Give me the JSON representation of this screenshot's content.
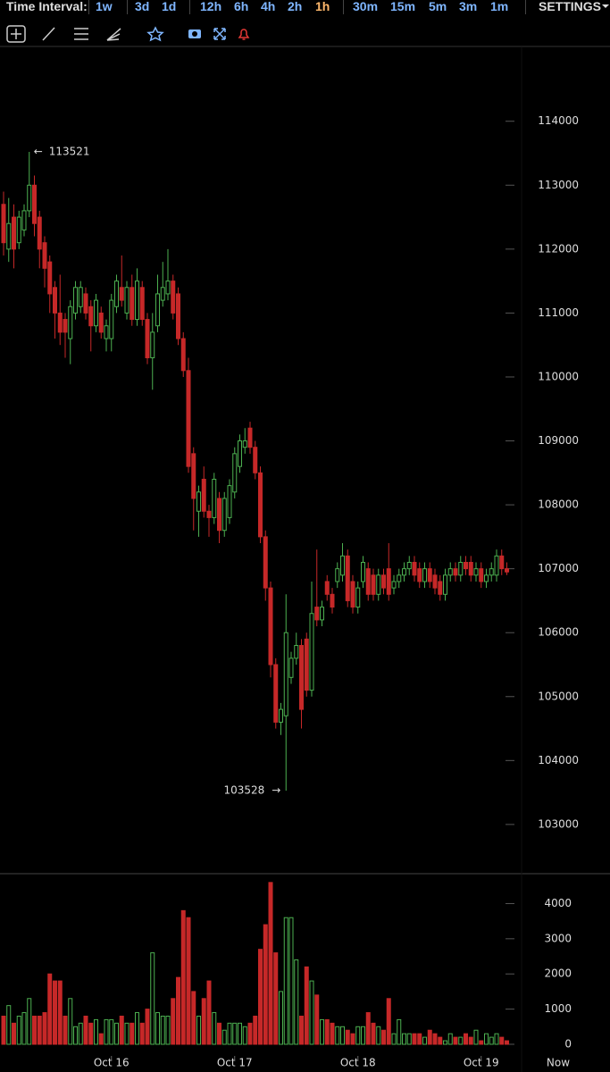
{
  "toolbar": {
    "label": "Time Interval:",
    "intervals": [
      "1w",
      "3d",
      "1d",
      "12h",
      "6h",
      "4h",
      "2h",
      "1h",
      "30m",
      "15m",
      "5m",
      "3m",
      "1m"
    ],
    "active": "1h",
    "settings": "SETTINGS"
  },
  "chart_data": {
    "type": "candlestick",
    "up_color": "#4caf50",
    "down_color": "#c62828",
    "categories": [
      null,
      null,
      null,
      null,
      null,
      null,
      null,
      null,
      null,
      null,
      null,
      null,
      null,
      null,
      null,
      null,
      null,
      null,
      null,
      null,
      null,
      "Oct 16",
      null,
      null,
      null,
      null,
      null,
      null,
      null,
      null,
      null,
      null,
      null,
      null,
      null,
      null,
      null,
      null,
      null,
      null,
      null,
      null,
      null,
      null,
      null,
      "Oct 17",
      null,
      null,
      null,
      null,
      null,
      null,
      null,
      null,
      null,
      null,
      null,
      null,
      null,
      null,
      null,
      null,
      null,
      null,
      null,
      null,
      null,
      null,
      null,
      "Oct 18",
      null,
      null,
      null,
      null,
      null,
      null,
      null,
      null,
      null,
      null,
      null,
      null,
      null,
      null,
      null,
      null,
      null,
      null,
      null,
      null,
      null,
      null,
      null,
      "Oct 19",
      null,
      null,
      null,
      null,
      null
    ],
    "now_label": "Now",
    "ohlc": [
      [
        112700,
        112900,
        111900,
        112100
      ],
      [
        112000,
        112800,
        111800,
        112400
      ],
      [
        112500,
        112700,
        111700,
        112000
      ],
      [
        112100,
        112600,
        112000,
        112500
      ],
      [
        112300,
        112700,
        112200,
        112600
      ],
      [
        112600,
        113521,
        112500,
        113000
      ],
      [
        113000,
        113150,
        112200,
        112400
      ],
      [
        112500,
        112600,
        111700,
        112000
      ],
      [
        112100,
        112200,
        111400,
        111700
      ],
      [
        111800,
        111900,
        111000,
        111300
      ],
      [
        111400,
        111500,
        110600,
        111000
      ],
      [
        111000,
        111600,
        110500,
        110700
      ],
      [
        110900,
        111000,
        110300,
        110700
      ],
      [
        110600,
        111200,
        110200,
        111100
      ],
      [
        111000,
        111500,
        110900,
        111400
      ],
      [
        111100,
        111500,
        111000,
        111400
      ],
      [
        111300,
        111400,
        110900,
        111000
      ],
      [
        111100,
        111200,
        110400,
        110800
      ],
      [
        110800,
        111300,
        110700,
        111200
      ],
      [
        111000,
        111100,
        110600,
        110700
      ],
      [
        110600,
        110900,
        110400,
        110800
      ],
      [
        110600,
        111300,
        110400,
        111200
      ],
      [
        111100,
        111600,
        111000,
        111500
      ],
      [
        111400,
        111900,
        111100,
        111200
      ],
      [
        111000,
        111500,
        110900,
        111400
      ],
      [
        111400,
        111600,
        110800,
        110900
      ],
      [
        110900,
        111700,
        110800,
        111500
      ],
      [
        111400,
        111500,
        110800,
        110900
      ],
      [
        110900,
        111000,
        110200,
        110300
      ],
      [
        110300,
        111000,
        109800,
        110700
      ],
      [
        110800,
        111600,
        110700,
        111300
      ],
      [
        111200,
        111800,
        111100,
        111400
      ],
      [
        111300,
        112000,
        111200,
        111500
      ],
      [
        111500,
        111600,
        110900,
        111000
      ],
      [
        111300,
        111400,
        110500,
        110600
      ],
      [
        110600,
        110700,
        110000,
        110100
      ],
      [
        110100,
        110300,
        108500,
        108600
      ],
      [
        108800,
        108900,
        107600,
        108100
      ],
      [
        107900,
        108300,
        107500,
        108200
      ],
      [
        108400,
        108600,
        107800,
        107900
      ],
      [
        107900,
        108000,
        107500,
        107800
      ],
      [
        107800,
        108500,
        107700,
        108400
      ],
      [
        108100,
        108200,
        107400,
        107600
      ],
      [
        107600,
        108200,
        107500,
        108100
      ],
      [
        107800,
        108400,
        107700,
        108300
      ],
      [
        108200,
        108900,
        108100,
        108800
      ],
      [
        108600,
        109100,
        108500,
        109000
      ],
      [
        108900,
        109200,
        108800,
        109000
      ],
      [
        109200,
        109300,
        108800,
        108900
      ],
      [
        108900,
        109000,
        108400,
        108500
      ],
      [
        108500,
        108600,
        107400,
        107500
      ],
      [
        107500,
        107600,
        106500,
        106700
      ],
      [
        106700,
        106800,
        105300,
        105500
      ],
      [
        105500,
        105600,
        104500,
        104600
      ],
      [
        104600,
        104900,
        104400,
        104800
      ],
      [
        104700,
        106600,
        103528,
        106000
      ],
      [
        105300,
        105700,
        105200,
        105600
      ],
      [
        105600,
        106000,
        105500,
        105800
      ],
      [
        105800,
        105900,
        104500,
        104800
      ],
      [
        105900,
        106000,
        105000,
        105100
      ],
      [
        105100,
        106800,
        105000,
        106300
      ],
      [
        106400,
        107300,
        106100,
        106200
      ],
      [
        106200,
        106500,
        106100,
        106400
      ],
      [
        106800,
        106900,
        106500,
        106600
      ],
      [
        106600,
        106700,
        106300,
        106400
      ],
      [
        106800,
        107100,
        106700,
        107000
      ],
      [
        106900,
        107400,
        106800,
        107200
      ],
      [
        107200,
        107300,
        106400,
        106500
      ],
      [
        106800,
        106900,
        106300,
        106400
      ],
      [
        106400,
        106800,
        106300,
        106700
      ],
      [
        106800,
        107200,
        106700,
        107100
      ],
      [
        107000,
        107100,
        106500,
        106600
      ],
      [
        106900,
        107000,
        106500,
        106600
      ],
      [
        106600,
        107000,
        106500,
        106900
      ],
      [
        106900,
        107000,
        106600,
        106700
      ],
      [
        107000,
        107400,
        106500,
        106600
      ],
      [
        106700,
        106900,
        106600,
        106800
      ],
      [
        106800,
        107000,
        106700,
        106900
      ],
      [
        106900,
        107100,
        106800,
        107000
      ],
      [
        107000,
        107200,
        106900,
        107100
      ],
      [
        107100,
        107200,
        106800,
        106900
      ],
      [
        107000,
        107100,
        106700,
        106800
      ],
      [
        106800,
        107100,
        106700,
        107000
      ],
      [
        107000,
        107100,
        106700,
        106800
      ],
      [
        106900,
        107000,
        106600,
        106700
      ],
      [
        106800,
        106900,
        106500,
        106600
      ],
      [
        106600,
        107000,
        106500,
        106900
      ],
      [
        106900,
        107100,
        106800,
        107000
      ],
      [
        107000,
        107100,
        106800,
        106900
      ],
      [
        106900,
        107200,
        106800,
        107100
      ],
      [
        107100,
        107200,
        106900,
        107000
      ],
      [
        107100,
        107200,
        106800,
        106900
      ],
      [
        106900,
        107100,
        106800,
        107000
      ],
      [
        107000,
        107100,
        106700,
        106800
      ],
      [
        106800,
        107000,
        106700,
        106900
      ],
      [
        106900,
        107100,
        106800,
        107000
      ],
      [
        106900,
        107300,
        106800,
        107200
      ],
      [
        107200,
        107300,
        106900,
        107000
      ],
      [
        107000,
        107100,
        106900,
        106950
      ]
    ],
    "volume": [
      800,
      1100,
      600,
      800,
      900,
      1300,
      800,
      800,
      900,
      2000,
      1800,
      1800,
      800,
      1300,
      500,
      600,
      800,
      600,
      700,
      300,
      700,
      700,
      600,
      800,
      600,
      600,
      900,
      600,
      1000,
      2600,
      900,
      800,
      800,
      1300,
      1900,
      3800,
      3600,
      1500,
      800,
      1300,
      1800,
      900,
      600,
      400,
      600,
      600,
      600,
      500,
      600,
      800,
      2700,
      3400,
      4600,
      2600,
      1500,
      3600,
      3600,
      2400,
      800,
      2200,
      1800,
      1400,
      700,
      700,
      600,
      500,
      500,
      400,
      300,
      500,
      500,
      900,
      600,
      500,
      400,
      1300,
      300,
      700,
      300,
      300,
      300,
      300,
      200,
      400,
      300,
      200,
      100,
      300,
      200,
      200,
      300,
      200,
      400,
      100,
      300,
      200,
      300,
      200,
      100
    ],
    "ylim": [
      102230,
      115170
    ],
    "yticks": [
      103000,
      104000,
      105000,
      106000,
      107000,
      108000,
      109000,
      110000,
      111000,
      112000,
      113000,
      114000
    ],
    "vol_ylim": [
      -280,
      4850
    ],
    "vol_yticks": [
      0,
      1000,
      2000,
      3000,
      4000
    ],
    "max_label": 113521,
    "min_label": 103528
  }
}
